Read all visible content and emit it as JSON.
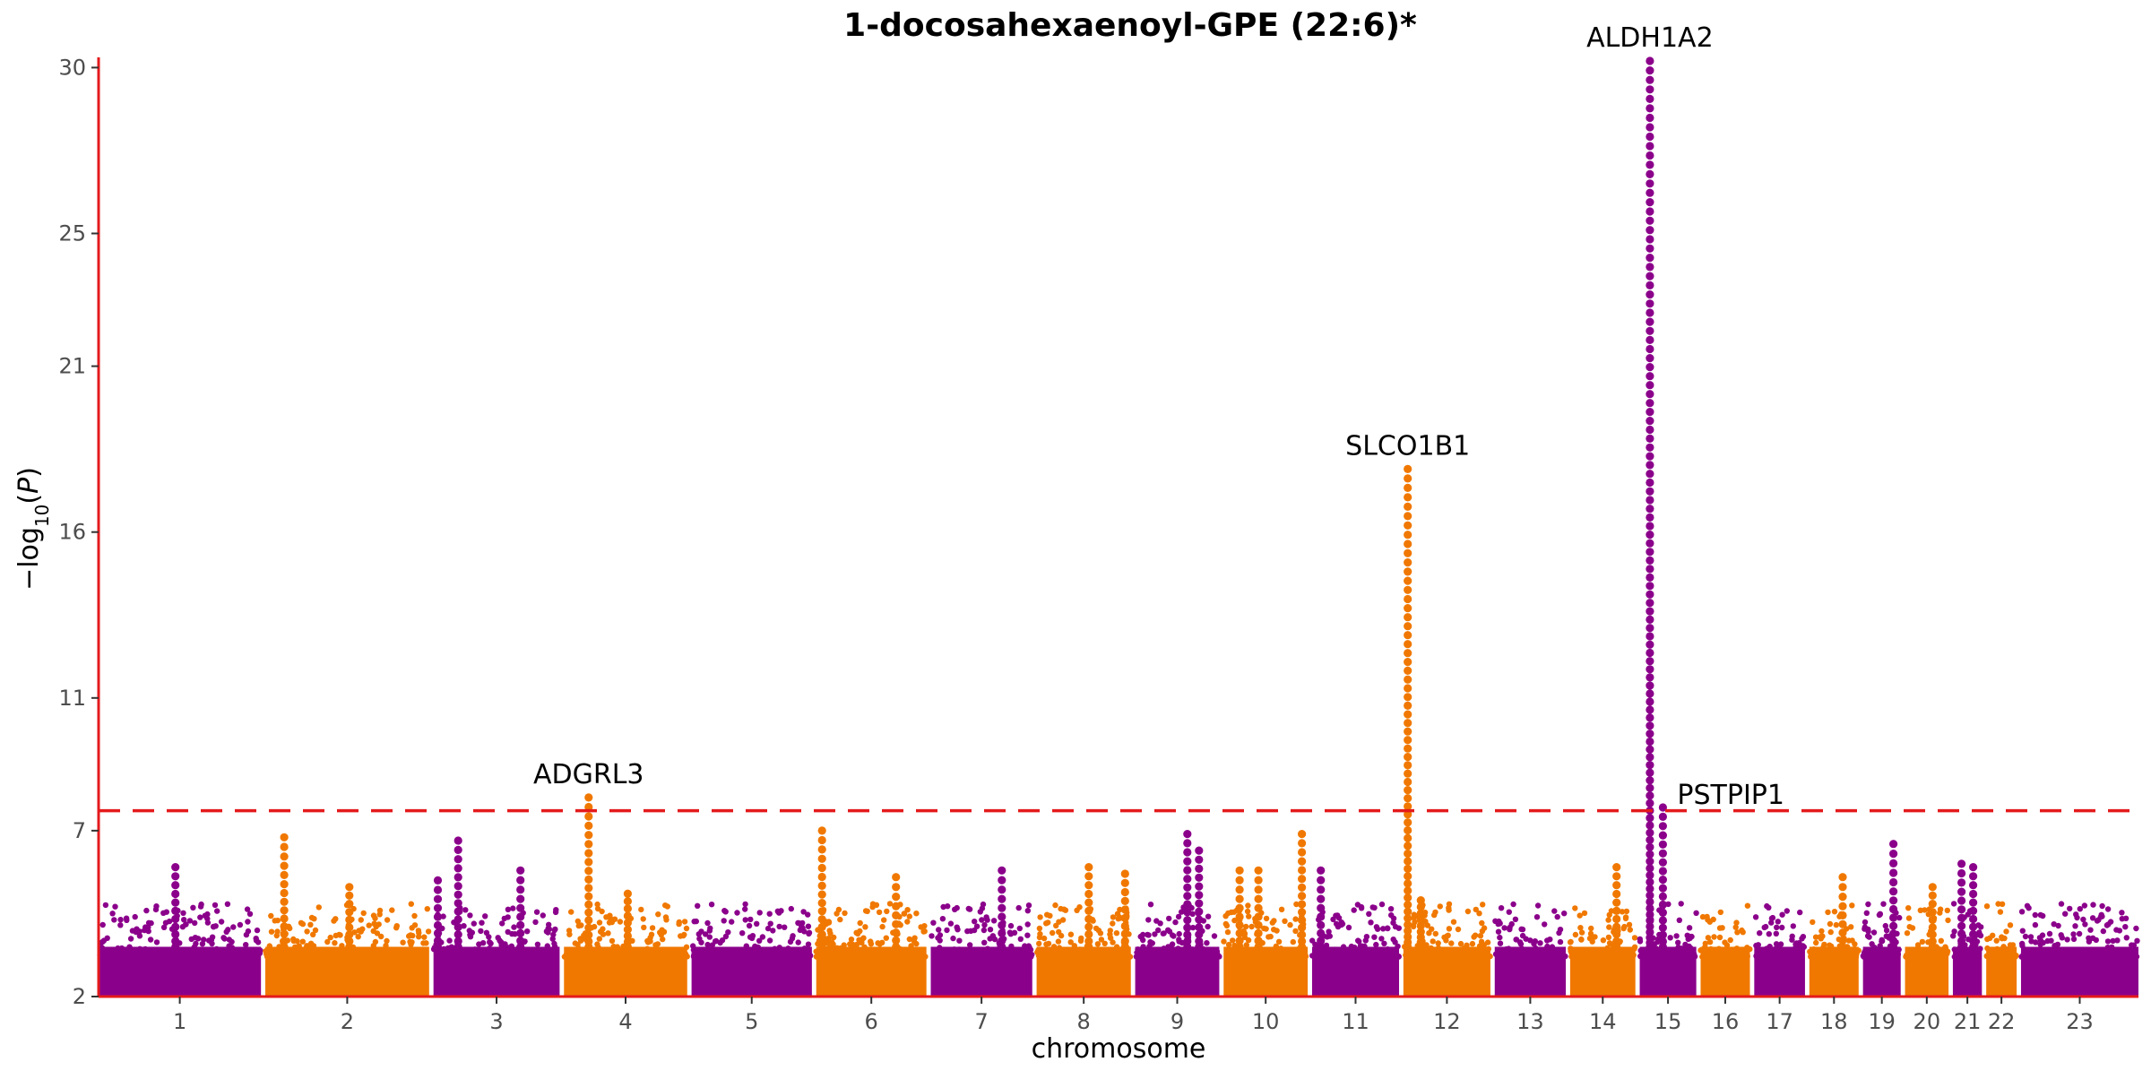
{
  "chart_data": {
    "type": "scatter",
    "subtype": "manhattan",
    "title": "1-docosahexaenoyl-GPE (22:6)*",
    "xlabel": "chromosome",
    "ylabel": "−log10(P)",
    "ylim": [
      2,
      30.2
    ],
    "yticks": [
      2,
      7,
      11,
      16,
      21,
      25,
      30
    ],
    "significance_threshold": 7.6,
    "colors": {
      "odd": "#8b008b",
      "even": "#f07800",
      "axis": "#e41a1c",
      "threshold": "#e41a1c"
    },
    "chromosomes": [
      {
        "label": "1",
        "start": 0,
        "end": 11.2
      },
      {
        "label": "2",
        "start": 11.5,
        "end": 22.8
      },
      {
        "label": "3",
        "start": 23.1,
        "end": 31.8
      },
      {
        "label": "4",
        "start": 32.1,
        "end": 40.6
      },
      {
        "label": "5",
        "start": 40.9,
        "end": 49.2
      },
      {
        "label": "6",
        "start": 49.5,
        "end": 57.1
      },
      {
        "label": "7",
        "start": 57.4,
        "end": 64.4
      },
      {
        "label": "8",
        "start": 64.7,
        "end": 71.2
      },
      {
        "label": "9",
        "start": 71.5,
        "end": 77.3
      },
      {
        "label": "10",
        "start": 77.6,
        "end": 83.4
      },
      {
        "label": "11",
        "start": 83.7,
        "end": 89.7
      },
      {
        "label": "12",
        "start": 90.0,
        "end": 96.0
      },
      {
        "label": "13",
        "start": 96.3,
        "end": 101.2
      },
      {
        "label": "14",
        "start": 101.5,
        "end": 106.0
      },
      {
        "label": "15",
        "start": 106.3,
        "end": 110.2
      },
      {
        "label": "16",
        "start": 110.5,
        "end": 113.9
      },
      {
        "label": "17",
        "start": 114.2,
        "end": 117.7
      },
      {
        "label": "18",
        "start": 118.0,
        "end": 121.4
      },
      {
        "label": "19",
        "start": 121.7,
        "end": 124.3
      },
      {
        "label": "20",
        "start": 124.6,
        "end": 127.6
      },
      {
        "label": "21",
        "start": 127.9,
        "end": 129.9
      },
      {
        "label": "22",
        "start": 130.2,
        "end": 132.3
      },
      {
        "label": "23",
        "start": 132.6,
        "end": 140.7
      }
    ],
    "annotations": [
      {
        "gene": "ADGRL3",
        "chr": "4",
        "pos": 33.8,
        "logp": 8.0
      },
      {
        "gene": "SLCO1B1",
        "chr": "12",
        "pos": 90.3,
        "logp": 17.9
      },
      {
        "gene": "ALDH1A2",
        "chr": "15",
        "pos": 107.0,
        "logp": 30.2
      },
      {
        "gene": "PSTPIP1",
        "chr": "15",
        "pos": 107.9,
        "logp": 7.7
      }
    ],
    "peaks": [
      {
        "chr": "1",
        "pos": 5.3,
        "max": 5.9
      },
      {
        "chr": "2",
        "pos": 12.8,
        "max": 6.8
      },
      {
        "chr": "2",
        "pos": 17.3,
        "max": 5.3
      },
      {
        "chr": "3",
        "pos": 23.4,
        "max": 5.5
      },
      {
        "chr": "3",
        "pos": 24.8,
        "max": 6.7
      },
      {
        "chr": "3",
        "pos": 29.1,
        "max": 5.8
      },
      {
        "chr": "4",
        "pos": 33.8,
        "max": 8.0
      },
      {
        "chr": "4",
        "pos": 36.5,
        "max": 5.1
      },
      {
        "chr": "6",
        "pos": 49.9,
        "max": 7.0
      },
      {
        "chr": "6",
        "pos": 55.0,
        "max": 5.6
      },
      {
        "chr": "7",
        "pos": 62.3,
        "max": 5.8
      },
      {
        "chr": "8",
        "pos": 68.3,
        "max": 5.9
      },
      {
        "chr": "8",
        "pos": 70.8,
        "max": 5.7
      },
      {
        "chr": "9",
        "pos": 75.1,
        "max": 6.9
      },
      {
        "chr": "9",
        "pos": 75.9,
        "max": 6.4
      },
      {
        "chr": "10",
        "pos": 78.7,
        "max": 5.8
      },
      {
        "chr": "10",
        "pos": 80.0,
        "max": 5.8
      },
      {
        "chr": "10",
        "pos": 83.0,
        "max": 6.9
      },
      {
        "chr": "11",
        "pos": 84.3,
        "max": 5.8
      },
      {
        "chr": "12",
        "pos": 90.3,
        "max": 17.9
      },
      {
        "chr": "12",
        "pos": 91.2,
        "max": 4.9
      },
      {
        "chr": "14",
        "pos": 104.7,
        "max": 5.9
      },
      {
        "chr": "15",
        "pos": 107.0,
        "max": 30.2
      },
      {
        "chr": "15",
        "pos": 107.9,
        "max": 7.7
      },
      {
        "chr": "18",
        "pos": 120.3,
        "max": 5.6
      },
      {
        "chr": "19",
        "pos": 123.8,
        "max": 6.6
      },
      {
        "chr": "20",
        "pos": 126.5,
        "max": 5.3
      },
      {
        "chr": "21",
        "pos": 128.5,
        "max": 6.0
      },
      {
        "chr": "21",
        "pos": 129.3,
        "max": 5.9
      }
    ]
  }
}
